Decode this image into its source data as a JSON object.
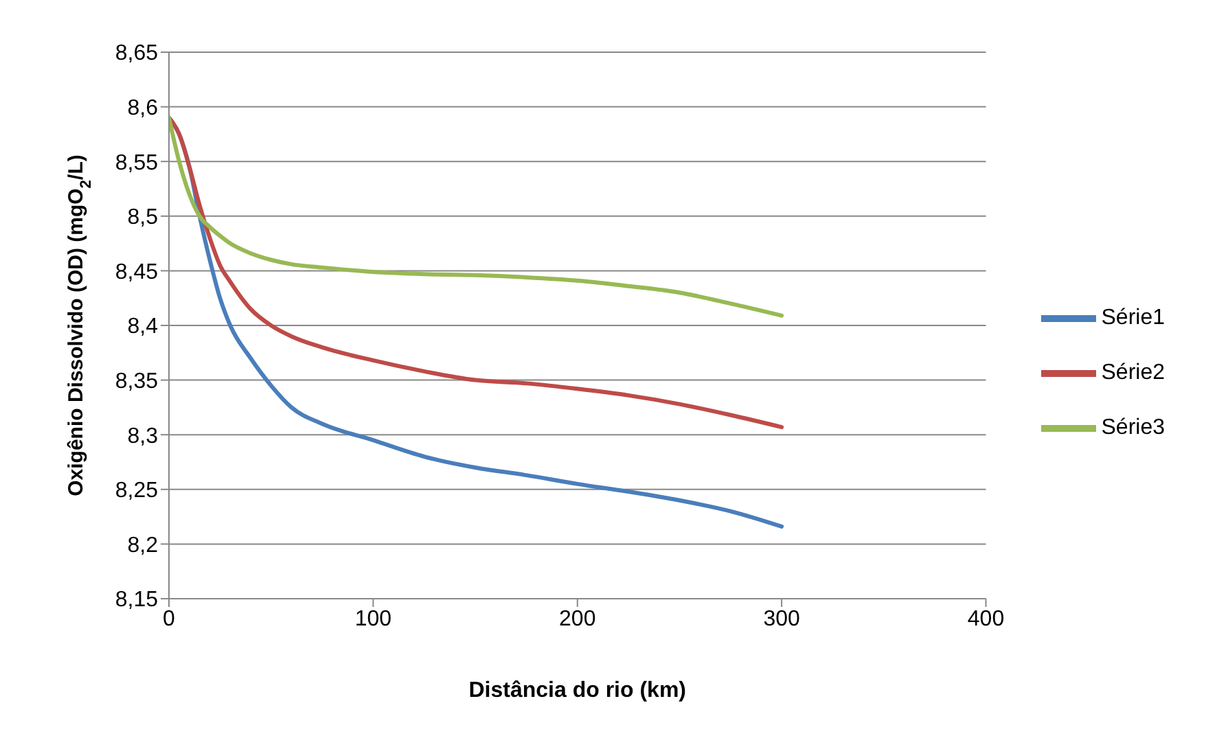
{
  "chart_data": {
    "type": "line",
    "xlabel": "Distância do rio (km)",
    "ylabel": "Oxigênio Dissolvido  (OD) (mgO$_{2}$/L)",
    "x": [
      0,
      5,
      10,
      15,
      20,
      25,
      30,
      40,
      50,
      60,
      75,
      100,
      125,
      150,
      175,
      200,
      225,
      250,
      275,
      300
    ],
    "series": [
      {
        "name": "Série1",
        "color": "#4a7ebb",
        "values": [
          8.59,
          8.575,
          8.545,
          8.5,
          8.46,
          8.425,
          8.4,
          8.37,
          8.345,
          8.325,
          8.31,
          8.295,
          8.28,
          8.27,
          8.263,
          8.255,
          8.248,
          8.24,
          8.23,
          8.216
        ]
      },
      {
        "name": "Série2",
        "color": "#be4b48",
        "values": [
          8.59,
          8.575,
          8.545,
          8.51,
          8.48,
          8.455,
          8.44,
          8.415,
          8.4,
          8.39,
          8.38,
          8.368,
          8.358,
          8.35,
          8.347,
          8.342,
          8.336,
          8.328,
          8.318,
          8.307
        ]
      },
      {
        "name": "Série3",
        "color": "#98b954",
        "values": [
          8.59,
          8.55,
          8.52,
          8.5,
          8.49,
          8.482,
          8.475,
          8.466,
          8.46,
          8.456,
          8.453,
          8.449,
          8.447,
          8.446,
          8.444,
          8.441,
          8.436,
          8.43,
          8.42,
          8.409
        ]
      }
    ],
    "xlim": [
      0,
      400
    ],
    "xticks": [
      0,
      100,
      200,
      300,
      400
    ],
    "ylim": [
      8.15,
      8.65
    ],
    "yticks": [
      {
        "value": 8.15,
        "label": "8,15"
      },
      {
        "value": 8.2,
        "label": "8,2"
      },
      {
        "value": 8.25,
        "label": "8,25"
      },
      {
        "value": 8.3,
        "label": "8,3"
      },
      {
        "value": 8.35,
        "label": "8,35"
      },
      {
        "value": 8.4,
        "label": "8,4"
      },
      {
        "value": 8.45,
        "label": "8,45"
      },
      {
        "value": 8.5,
        "label": "8,5"
      },
      {
        "value": 8.55,
        "label": "8,55"
      },
      {
        "value": 8.6,
        "label": "8,6"
      },
      {
        "value": 8.65,
        "label": "8,65"
      }
    ],
    "grid": "y",
    "legend": "right",
    "marker": "none",
    "line_style": "solid"
  }
}
